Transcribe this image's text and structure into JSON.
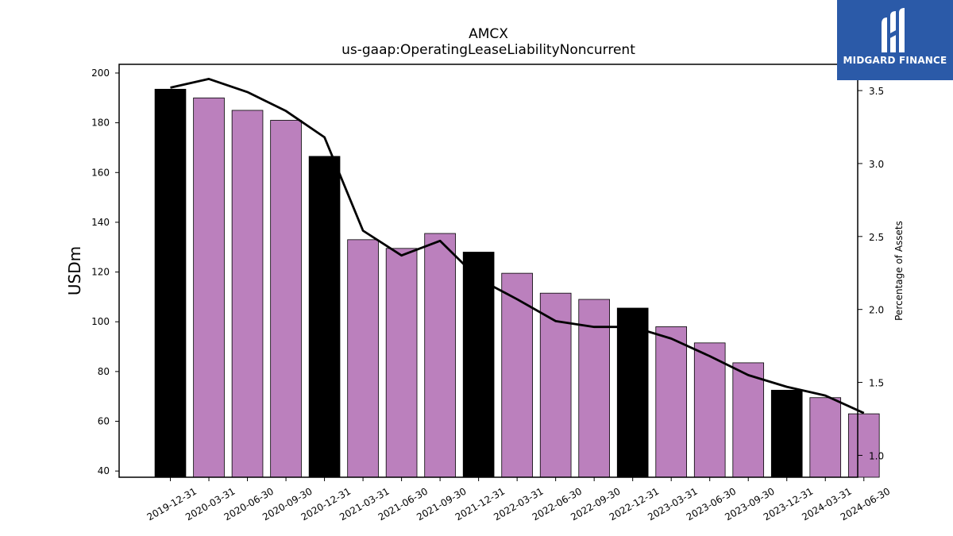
{
  "chart_data": {
    "type": "bar",
    "title": "AMCX",
    "subtitle": "us-gaap:OperatingLeaseLiabilityNoncurrent",
    "ylabel": "USDm",
    "y2label": "Percentage of Assets",
    "ylim": [
      37.5,
      203.5
    ],
    "y2lim": [
      0.85,
      3.68
    ],
    "yticks": [
      40,
      60,
      80,
      100,
      120,
      140,
      160,
      180,
      200
    ],
    "y2ticks": [
      1.0,
      1.5,
      2.0,
      2.5,
      3.0,
      3.5
    ],
    "y2tick_labels": [
      "1.0",
      "1.5",
      "2.0",
      "2.5",
      "3.0",
      "3.5"
    ],
    "categories": [
      "2019-12-31",
      "2020-03-31",
      "2020-06-30",
      "2020-09-30",
      "2020-12-31",
      "2021-03-31",
      "2021-06-30",
      "2021-09-30",
      "2021-12-31",
      "2022-03-31",
      "2022-06-30",
      "2022-09-30",
      "2022-12-31",
      "2023-03-31",
      "2023-06-30",
      "2023-09-30",
      "2023-12-31",
      "2024-03-31",
      "2024-06-30"
    ],
    "series": [
      {
        "type": "bar",
        "values": [
          193.5,
          190.0,
          185.0,
          181.0,
          166.5,
          133.0,
          129.5,
          135.5,
          128.0,
          119.5,
          111.5,
          109.0,
          105.5,
          98.0,
          91.5,
          83.5,
          72.5,
          69.5,
          63.0
        ],
        "colors": [
          "#000000",
          "#bb80bd",
          "#bb80bd",
          "#bb80bd",
          "#000000",
          "#bb80bd",
          "#bb80bd",
          "#bb80bd",
          "#000000",
          "#bb80bd",
          "#bb80bd",
          "#bb80bd",
          "#000000",
          "#bb80bd",
          "#bb80bd",
          "#bb80bd",
          "#000000",
          "#bb80bd",
          "#bb80bd"
        ]
      },
      {
        "type": "line",
        "axis": "right",
        "color": "#000000",
        "values": [
          3.52,
          3.58,
          3.49,
          3.36,
          3.18,
          2.54,
          2.37,
          2.47,
          2.21,
          2.07,
          1.92,
          1.88,
          1.88,
          1.8,
          1.68,
          1.55,
          1.47,
          1.41,
          1.29
        ]
      }
    ],
    "grid": false,
    "legend": "none"
  },
  "logo": {
    "text": "MIDGARD FINANCE",
    "color": "#2b5aa8"
  }
}
